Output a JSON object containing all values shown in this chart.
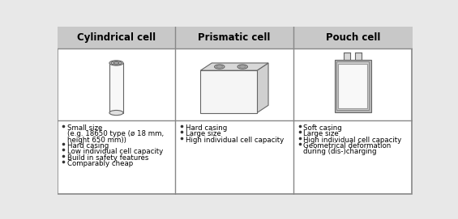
{
  "headers": [
    "Cylindrical cell",
    "Prismatic cell",
    "Pouch cell"
  ],
  "header_bg": "#c8c8c8",
  "cell_bg": "#ffffff",
  "outer_bg": "#e8e8e8",
  "border_color": "#aaaaaa",
  "text_color": "#000000",
  "bullet_points": {
    "cylindrical": [
      [
        "Small size",
        true
      ],
      [
        "(e.g. 18650 type (ø 18 mm,",
        false
      ],
      [
        "height 650 mm))",
        false
      ],
      [
        "Hard casing",
        true
      ],
      [
        "Low individual cell capacity",
        true
      ],
      [
        "Build in safety features",
        true
      ],
      [
        "Comparably cheap",
        true
      ]
    ],
    "prismatic": [
      [
        "Hard casing",
        true
      ],
      [
        "Large size",
        true
      ],
      [
        "High individual cell capacity",
        true
      ]
    ],
    "pouch": [
      [
        "Soft casing",
        true
      ],
      [
        "Large size",
        true
      ],
      [
        "High individual cell capacity",
        true
      ],
      [
        "Geometrical deformation",
        true
      ],
      [
        "during (dis-)charging",
        false
      ]
    ]
  },
  "figsize": [
    5.65,
    2.71
  ],
  "dpi": 100
}
